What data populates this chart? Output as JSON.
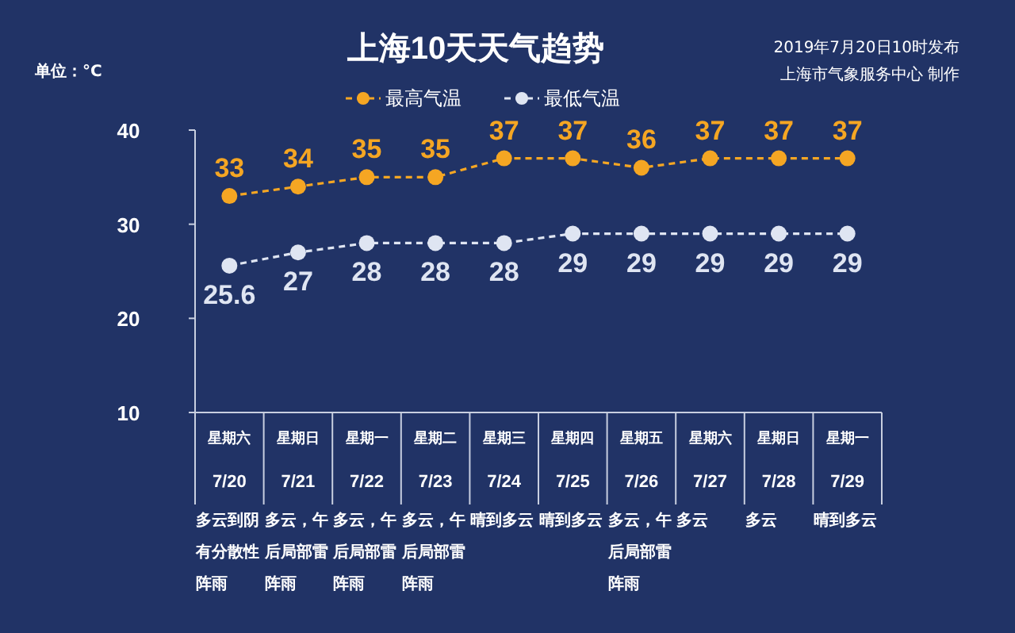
{
  "chart_data": {
    "type": "line",
    "title": "上海10天天气趋势",
    "ylabel": "单位：°C",
    "categories": [
      "星期六\n7/20",
      "星期日\n7/21",
      "星期一\n7/22",
      "星期二\n7/23",
      "星期三\n7/24",
      "星期四\n7/25",
      "星期五\n7/26",
      "星期六\n7/27",
      "星期日\n7/28",
      "星期一\n7/29"
    ],
    "series": [
      {
        "name": "最高气温",
        "color": "#f5a623",
        "values": [
          33,
          34,
          35,
          35,
          37,
          37,
          36,
          37,
          37,
          37
        ]
      },
      {
        "name": "最低气温",
        "color": "#dfe5f2",
        "values": [
          25.6,
          27,
          28,
          28,
          28,
          29,
          29,
          29,
          29,
          29
        ]
      }
    ],
    "ylim": [
      10,
      40
    ],
    "yticks": [
      10,
      20,
      30,
      40
    ],
    "grid": false,
    "legend": "top",
    "marker": "circle",
    "line_style": "dashed",
    "data_labels": true,
    "annotations": [
      "2019年7月20日10时发布",
      "上海市气象服务中心 制作",
      "多云到阴有分散性阵雨",
      "多云，午后局部雷阵雨",
      "多云，午后局部雷阵雨",
      "多云，午后局部雷阵雨",
      "晴到多云",
      "晴到多云",
      "多云，午后局部雷阵雨",
      "多云",
      "多云",
      "晴到多云"
    ]
  }
}
